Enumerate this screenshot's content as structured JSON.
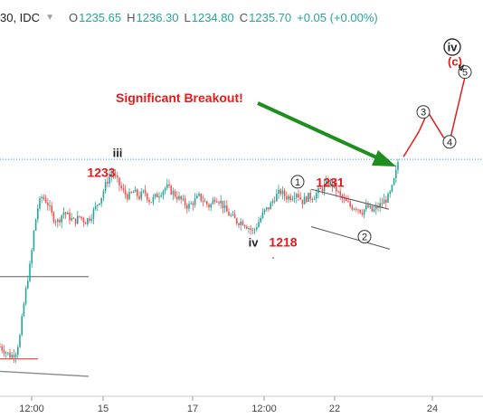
{
  "header": {
    "symbol": "30, IDC",
    "dropdown_icon": "chevron-down-icon",
    "open_label": "O",
    "open": "1235.65",
    "high_label": "H",
    "high": "1236.30",
    "low_label": "L",
    "low": "1234.80",
    "close_label": "C",
    "close": "1235.70",
    "change": "+0.05 (+0.00%)"
  },
  "colors": {
    "candle_up": "#26a69a",
    "candle_down": "#ef5350",
    "wick": "#6b6b6b",
    "annotation_red": "#e31b1b",
    "arrow_green": "#1e8e1e",
    "channel": "#555555",
    "dotted_level": "#2196f3",
    "value_up": "#26a69a"
  },
  "chart_data": {
    "type": "candlestick",
    "x_tick_labels": [
      "12:00",
      "15",
      "17",
      "12:00",
      "22",
      "24"
    ],
    "price_path": [
      [
        0,
        1198
      ],
      [
        6,
        1197
      ],
      [
        12,
        1196
      ],
      [
        18,
        1197
      ],
      [
        22,
        1200
      ],
      [
        26,
        1206
      ],
      [
        30,
        1211
      ],
      [
        34,
        1215
      ],
      [
        38,
        1222
      ],
      [
        42,
        1226
      ],
      [
        46,
        1228
      ],
      [
        52,
        1227
      ],
      [
        58,
        1224
      ],
      [
        64,
        1223
      ],
      [
        70,
        1225
      ],
      [
        76,
        1224
      ],
      [
        82,
        1223
      ],
      [
        88,
        1224
      ],
      [
        94,
        1223
      ],
      [
        100,
        1224
      ],
      [
        106,
        1226
      ],
      [
        112,
        1228
      ],
      [
        118,
        1231
      ],
      [
        124,
        1233
      ],
      [
        130,
        1231
      ],
      [
        136,
        1229
      ],
      [
        142,
        1228
      ],
      [
        148,
        1229
      ],
      [
        154,
        1228
      ],
      [
        160,
        1229
      ],
      [
        166,
        1227
      ],
      [
        172,
        1228
      ],
      [
        178,
        1229
      ],
      [
        184,
        1230
      ],
      [
        190,
        1229
      ],
      [
        196,
        1228
      ],
      [
        202,
        1227
      ],
      [
        208,
        1226
      ],
      [
        214,
        1227
      ],
      [
        220,
        1228
      ],
      [
        226,
        1227
      ],
      [
        232,
        1226
      ],
      [
        238,
        1228
      ],
      [
        244,
        1227
      ],
      [
        250,
        1225
      ],
      [
        256,
        1224
      ],
      [
        262,
        1223
      ],
      [
        268,
        1223
      ],
      [
        274,
        1222
      ],
      [
        280,
        1221
      ],
      [
        286,
        1223
      ],
      [
        292,
        1225
      ],
      [
        298,
        1226
      ],
      [
        304,
        1228
      ],
      [
        310,
        1229
      ],
      [
        316,
        1228
      ],
      [
        322,
        1228
      ],
      [
        328,
        1229
      ],
      [
        334,
        1227
      ],
      [
        340,
        1228
      ],
      [
        346,
        1228
      ],
      [
        352,
        1229
      ],
      [
        358,
        1230
      ],
      [
        364,
        1231
      ],
      [
        370,
        1230
      ],
      [
        376,
        1228
      ],
      [
        382,
        1227
      ],
      [
        388,
        1226
      ],
      [
        394,
        1226
      ],
      [
        400,
        1225
      ],
      [
        406,
        1226
      ],
      [
        412,
        1225
      ],
      [
        418,
        1226
      ],
      [
        424,
        1227
      ],
      [
        430,
        1228
      ],
      [
        434,
        1230
      ],
      [
        438,
        1233
      ],
      [
        440,
        1235
      ],
      [
        442,
        1236
      ]
    ],
    "wave_labels": [
      {
        "text": "iii",
        "x": 130,
        "y": 1236
      },
      {
        "text": "1233",
        "x": 112,
        "y": 1232
      },
      {
        "text": "iv",
        "x": 280,
        "y": 1218
      },
      {
        "text": "1218",
        "x": 313,
        "y": 1218
      },
      {
        "text": "1231",
        "x": 365,
        "y": 1230
      }
    ],
    "circled_waves": [
      {
        "text": "1",
        "x": 329,
        "y": 1231
      },
      {
        "text": "2",
        "x": 403,
        "y": 1220
      },
      {
        "text": "3",
        "x": 468,
        "y": 1245
      },
      {
        "text": "4",
        "x": 497,
        "y": 1239
      },
      {
        "text": "5",
        "x": 514,
        "y": 1253
      }
    ],
    "projection_path": [
      [
        446,
        1236
      ],
      [
        463,
        1241
      ],
      [
        473,
        1245
      ],
      [
        490,
        1240
      ],
      [
        497,
        1239
      ],
      [
        514,
        1252
      ]
    ],
    "top_labels": [
      {
        "text": "iv",
        "x": 500,
        "y": 1258
      },
      {
        "text": "(c)",
        "x": 503,
        "y": 1255
      },
      {
        "text": "v",
        "x": 510,
        "y": 1254
      }
    ],
    "annotation": "Significant Breakout!",
    "dotted_level": 1235.5,
    "ylim": [
      1188,
      1262
    ]
  }
}
